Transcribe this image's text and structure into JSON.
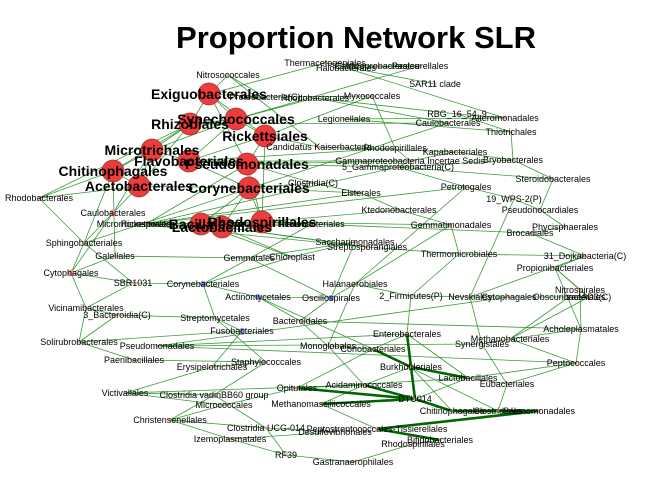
{
  "title": "Proportion Network SLR",
  "colors": {
    "edge": "#1a8a1a",
    "edge_strong": "#006600",
    "node_big": "#ee3b3b",
    "node_stroke": "#993333",
    "node_pink": "#ee9a9a",
    "node_blue": "#8888dd",
    "label": "#000000",
    "background": "#ffffff"
  },
  "nodes": [
    {
      "label": "Thermacetogeniales",
      "kind": "small"
    },
    {
      "label": "Caldicoprobacterales",
      "kind": "small"
    },
    {
      "label": "Nitrosococcales",
      "kind": "small"
    },
    {
      "label": "Pasteurellales",
      "kind": "small"
    },
    {
      "label": "SAR11 clade",
      "kind": "small"
    },
    {
      "label": "Halobacterales",
      "kind": "small"
    },
    {
      "label": "Exiguobacterales",
      "kind": "big"
    },
    {
      "label": "Proteobacteria(C)",
      "kind": "small"
    },
    {
      "label": "Rhodobacterales",
      "kind": "small"
    },
    {
      "label": "Myxococcales",
      "kind": "small"
    },
    {
      "label": "Synechococcales",
      "kind": "big"
    },
    {
      "label": "RBG_16_54_9",
      "kind": "small"
    },
    {
      "label": "Alteromonadales",
      "kind": "small"
    },
    {
      "label": "Rhizobiales",
      "kind": "big"
    },
    {
      "label": "Rickettsiales",
      "kind": "big"
    },
    {
      "label": "Caulobacterales",
      "kind": "small"
    },
    {
      "label": "Legionellales",
      "kind": "small"
    },
    {
      "label": "Thiotrichales",
      "kind": "small"
    },
    {
      "label": "Candidatus Kaiserbacteria",
      "kind": "small"
    },
    {
      "label": "Rhodospirillales",
      "kind": "small"
    },
    {
      "label": "Microtrichales",
      "kind": "big"
    },
    {
      "label": "Kapabacteriales",
      "kind": "small"
    },
    {
      "label": "Bryobacterales",
      "kind": "small"
    },
    {
      "label": "Flavobacteriales",
      "kind": "big"
    },
    {
      "label": "Gammaproteobacteria Incertae Sedis",
      "kind": "small"
    },
    {
      "label": "Chitinophagales",
      "kind": "big"
    },
    {
      "label": "Pseudomonadales",
      "kind": "big"
    },
    {
      "label": "5_Gammaproteobacteria(C)",
      "kind": "small"
    },
    {
      "label": "Steroidobacterales",
      "kind": "small"
    },
    {
      "label": "Clostridia(C)",
      "kind": "small"
    },
    {
      "label": "Acetobacterales",
      "kind": "big"
    },
    {
      "label": "Corynebacteriales",
      "kind": "big"
    },
    {
      "label": "Elsterales",
      "kind": "small"
    },
    {
      "label": "Petrotogales",
      "kind": "small"
    },
    {
      "label": "Rhodobacterales",
      "kind": "small"
    },
    {
      "label": "19_WPS-2(P)",
      "kind": "small"
    },
    {
      "label": "Caulobacterales",
      "kind": "pink"
    },
    {
      "label": "Ktedonobacterales",
      "kind": "small"
    },
    {
      "label": "Pseudonocardiales",
      "kind": "small"
    },
    {
      "label": "Rickettsiales",
      "kind": "small"
    },
    {
      "label": "Bacillales",
      "kind": "big"
    },
    {
      "label": "Lactobacillales",
      "kind": "big"
    },
    {
      "label": "Rhodospirillales",
      "kind": "big"
    },
    {
      "label": "Flavobacteriales",
      "kind": "small"
    },
    {
      "label": "Gemmatimonadales",
      "kind": "small"
    },
    {
      "label": "Phycisphaerales",
      "kind": "small"
    },
    {
      "label": "Sphingobacteriales",
      "kind": "small"
    },
    {
      "label": "Micromonosporales",
      "kind": "small"
    },
    {
      "label": "Brocadiales",
      "kind": "small"
    },
    {
      "label": "Galellales",
      "kind": "small"
    },
    {
      "label": "Gemmatales",
      "kind": "small"
    },
    {
      "label": "Chloroplast",
      "kind": "small"
    },
    {
      "label": "Streptosporangiales",
      "kind": "small"
    },
    {
      "label": "Thermomicrobiales",
      "kind": "small"
    },
    {
      "label": "31_Dojkabacteria(C)",
      "kind": "small"
    },
    {
      "label": "Saccharimonadales",
      "kind": "small"
    },
    {
      "label": "Cytophagales",
      "kind": "pink"
    },
    {
      "label": "Propionibacteriales",
      "kind": "small"
    },
    {
      "label": "SBR1031",
      "kind": "small"
    },
    {
      "label": "Corynebacteriales",
      "kind": "blue"
    },
    {
      "label": "Nitrospirales",
      "kind": "small"
    },
    {
      "label": "Halanaerobiales",
      "kind": "small"
    },
    {
      "label": "Actinomycetales",
      "kind": "blue"
    },
    {
      "label": "Oscillospirales",
      "kind": "blue"
    },
    {
      "label": "2_Firmicutes(P)",
      "kind": "small"
    },
    {
      "label": "Nevskiales",
      "kind": "small"
    },
    {
      "label": "Cytophagales",
      "kind": "small"
    },
    {
      "label": "Obscuribacterales",
      "kind": "small"
    },
    {
      "label": "zaeAD3(C)",
      "kind": "small"
    },
    {
      "label": "Vicinamibacterales",
      "kind": "small"
    },
    {
      "label": "3_Bacteroidia(C)",
      "kind": "small"
    },
    {
      "label": "Streptomycetales",
      "kind": "small"
    },
    {
      "label": "Bacteroidales",
      "kind": "small"
    },
    {
      "label": "Acholeplasmatales",
      "kind": "small"
    },
    {
      "label": "Solirubrobacterales",
      "kind": "small"
    },
    {
      "label": "Fusobacteriales",
      "kind": "blue"
    },
    {
      "label": "Enterobacterales",
      "kind": "small"
    },
    {
      "label": "Methanobacteriales",
      "kind": "small"
    },
    {
      "label": "Pseudomonadales",
      "kind": "small"
    },
    {
      "label": "Monoglobales",
      "kind": "small"
    },
    {
      "label": "Coriobacteriales",
      "kind": "small"
    },
    {
      "label": "Synergistales",
      "kind": "small"
    },
    {
      "label": "Paenibacillales",
      "kind": "small"
    },
    {
      "label": "Staphylococcales",
      "kind": "small"
    },
    {
      "label": "Peptococcales",
      "kind": "small"
    },
    {
      "label": "Erysipelotrichales",
      "kind": "small"
    },
    {
      "label": "Burkholderiales",
      "kind": "small"
    },
    {
      "label": "Lactobacillales",
      "kind": "small"
    },
    {
      "label": "Acidaminococcales",
      "kind": "small"
    },
    {
      "label": "Opitutales",
      "kind": "small"
    },
    {
      "label": "Eubacteriales",
      "kind": "small"
    },
    {
      "label": "Victivallales",
      "kind": "small"
    },
    {
      "label": "Clostridia vadinBB60 group",
      "kind": "small"
    },
    {
      "label": "DTU014",
      "kind": "small"
    },
    {
      "label": "Micrococcales",
      "kind": "small"
    },
    {
      "label": "Methanomassiliicoccales",
      "kind": "small"
    },
    {
      "label": "Christensenellales",
      "kind": "small"
    },
    {
      "label": "Chitinophagales",
      "kind": "small"
    },
    {
      "label": "Clostridiales",
      "kind": "small"
    },
    {
      "label": "Selenomonadales",
      "kind": "small"
    },
    {
      "label": "Clostridia UCG-014",
      "kind": "small"
    },
    {
      "label": "Desulfovibrionales",
      "kind": "small"
    },
    {
      "label": "Peptostreptococcales-Tissierellales",
      "kind": "small"
    },
    {
      "label": "Izemoplasmatales",
      "kind": "small"
    },
    {
      "label": "Bifidobacteriales",
      "kind": "small"
    },
    {
      "label": "Rhodospirillales",
      "kind": "small"
    },
    {
      "label": "RF39",
      "kind": "small"
    },
    {
      "label": "Gastranaerophilales",
      "kind": "small"
    }
  ],
  "edges": [
    [
      6,
      10
    ],
    [
      6,
      13
    ],
    [
      6,
      14
    ],
    [
      10,
      13
    ],
    [
      10,
      14
    ],
    [
      10,
      20
    ],
    [
      10,
      23
    ],
    [
      13,
      20
    ],
    [
      13,
      25
    ],
    [
      13,
      30
    ],
    [
      14,
      26
    ],
    [
      14,
      23
    ],
    [
      20,
      23
    ],
    [
      20,
      25
    ],
    [
      20,
      30
    ],
    [
      23,
      26
    ],
    [
      23,
      31
    ],
    [
      25,
      30
    ],
    [
      26,
      31
    ],
    [
      30,
      31
    ],
    [
      31,
      40
    ],
    [
      31,
      42
    ],
    [
      40,
      42
    ],
    [
      26,
      42
    ],
    [
      14,
      42
    ],
    [
      6,
      26
    ],
    [
      6,
      0
    ],
    [
      6,
      2
    ],
    [
      6,
      7
    ],
    [
      10,
      3
    ],
    [
      10,
      8
    ],
    [
      14,
      9
    ],
    [
      14,
      18
    ],
    [
      26,
      24
    ],
    [
      26,
      27
    ],
    [
      26,
      29
    ],
    [
      31,
      29
    ],
    [
      31,
      32
    ],
    [
      42,
      37
    ],
    [
      42,
      44
    ],
    [
      42,
      48
    ],
    [
      40,
      43
    ],
    [
      40,
      47
    ],
    [
      40,
      51
    ],
    [
      40,
      52
    ],
    [
      30,
      34
    ],
    [
      30,
      36
    ],
    [
      25,
      34
    ],
    [
      25,
      46
    ],
    [
      25,
      49
    ],
    [
      20,
      36
    ],
    [
      13,
      34
    ],
    [
      13,
      15
    ],
    [
      23,
      19
    ],
    [
      23,
      24
    ],
    [
      0,
      1
    ],
    [
      0,
      4
    ],
    [
      1,
      3
    ],
    [
      3,
      5
    ],
    [
      2,
      7
    ],
    [
      7,
      9
    ],
    [
      8,
      11
    ],
    [
      11,
      12
    ],
    [
      12,
      16
    ],
    [
      16,
      17
    ],
    [
      11,
      17
    ],
    [
      18,
      21
    ],
    [
      21,
      22
    ],
    [
      19,
      24
    ],
    [
      22,
      28
    ],
    [
      24,
      27
    ],
    [
      27,
      28
    ],
    [
      27,
      33
    ],
    [
      29,
      32
    ],
    [
      32,
      37
    ],
    [
      33,
      35
    ],
    [
      35,
      38
    ],
    [
      38,
      45
    ],
    [
      45,
      48
    ],
    [
      28,
      38
    ],
    [
      37,
      44
    ],
    [
      44,
      53
    ],
    [
      53,
      54
    ],
    [
      54,
      57
    ],
    [
      57,
      60
    ],
    [
      48,
      54
    ],
    [
      36,
      46
    ],
    [
      46,
      56
    ],
    [
      56,
      58
    ],
    [
      58,
      59
    ],
    [
      49,
      50
    ],
    [
      50,
      55
    ],
    [
      51,
      55
    ],
    [
      47,
      52
    ],
    [
      52,
      53
    ],
    [
      59,
      62
    ],
    [
      62,
      63
    ],
    [
      63,
      61
    ],
    [
      61,
      64
    ],
    [
      64,
      65
    ],
    [
      65,
      66
    ],
    [
      66,
      67
    ],
    [
      67,
      68
    ],
    [
      60,
      68
    ],
    [
      57,
      68
    ],
    [
      58,
      69
    ],
    [
      69,
      70
    ],
    [
      70,
      74
    ],
    [
      59,
      71
    ],
    [
      71,
      75
    ],
    [
      62,
      72
    ],
    [
      72,
      73
    ],
    [
      73,
      77
    ],
    [
      74,
      82
    ],
    [
      82,
      83
    ],
    [
      75,
      85
    ],
    [
      83,
      85
    ],
    [
      72,
      79
    ],
    [
      79,
      80
    ],
    [
      80,
      76
    ],
    [
      76,
      86
    ],
    [
      86,
      88
    ],
    [
      88,
      89
    ],
    [
      89,
      94
    ],
    [
      94,
      91
    ],
    [
      91,
      92
    ],
    [
      92,
      96
    ],
    [
      96,
      100
    ],
    [
      100,
      101
    ],
    [
      101,
      103
    ],
    [
      103,
      106
    ],
    [
      106,
      107
    ],
    [
      107,
      105
    ],
    [
      105,
      104
    ],
    [
      76,
      78
    ],
    [
      78,
      81
    ],
    [
      81,
      77
    ],
    [
      77,
      84
    ],
    [
      84,
      90
    ],
    [
      90,
      87
    ],
    [
      87,
      93
    ],
    [
      93,
      97
    ],
    [
      97,
      98
    ],
    [
      98,
      99
    ],
    [
      99,
      102
    ],
    [
      102,
      104
    ],
    [
      86,
      93
    ],
    [
      88,
      95
    ],
    [
      95,
      102
    ],
    [
      79,
      88
    ],
    [
      80,
      89
    ],
    [
      63,
      72
    ],
    [
      61,
      79
    ],
    [
      64,
      76
    ],
    [
      65,
      81
    ],
    [
      66,
      78
    ],
    [
      67,
      77
    ],
    [
      33,
      61
    ],
    [
      35,
      65
    ],
    [
      53,
      64
    ],
    [
      55,
      63
    ],
    [
      44,
      61
    ],
    [
      51,
      59
    ],
    [
      43,
      59
    ],
    [
      15,
      46
    ],
    [
      8,
      15
    ],
    [
      2,
      18
    ],
    [
      9,
      19
    ],
    [
      5,
      12
    ],
    [
      22,
      27
    ],
    [
      21,
      24
    ],
    [
      17,
      22
    ],
    [
      41,
      47
    ],
    [
      41,
      52
    ],
    [
      41,
      51
    ],
    [
      41,
      43
    ],
    [
      40,
      41
    ],
    [
      42,
      41
    ],
    [
      31,
      41
    ],
    [
      56,
      69
    ],
    [
      69,
      74
    ],
    [
      70,
      71
    ],
    [
      74,
      75
    ],
    [
      71,
      83
    ],
    [
      85,
      91
    ],
    [
      83,
      92
    ],
    [
      92,
      100
    ],
    [
      96,
      103
    ],
    [
      100,
      106
    ],
    [
      73,
      84
    ],
    [
      84,
      87
    ],
    [
      87,
      89
    ],
    [
      90,
      98
    ],
    [
      97,
      99
    ],
    [
      93,
      95
    ],
    [
      76,
      87
    ],
    [
      86,
      97
    ],
    [
      80,
      98
    ],
    [
      94,
      96
    ],
    [
      88,
      91
    ],
    [
      89,
      93
    ],
    [
      78,
      84
    ],
    [
      81,
      90
    ],
    [
      62,
      80
    ],
    [
      60,
      73
    ],
    [
      57,
      73
    ],
    [
      68,
      77
    ],
    [
      54,
      65
    ],
    [
      50,
      63
    ],
    [
      49,
      56
    ],
    [
      36,
      56
    ],
    [
      46,
      58
    ],
    [
      34,
      46
    ],
    [
      39,
      33
    ],
    [
      39,
      26
    ],
    [
      39,
      27
    ],
    [
      39,
      32
    ],
    [
      42,
      39
    ]
  ],
  "strong_edges": [
    [
      76,
      86
    ],
    [
      86,
      93
    ],
    [
      93,
      97
    ],
    [
      97,
      98
    ],
    [
      98,
      99
    ],
    [
      99,
      102
    ],
    [
      102,
      104
    ],
    [
      88,
      93
    ],
    [
      95,
      93
    ],
    [
      80,
      86
    ],
    [
      86,
      87
    ],
    [
      89,
      93
    ],
    [
      97,
      99
    ]
  ]
}
